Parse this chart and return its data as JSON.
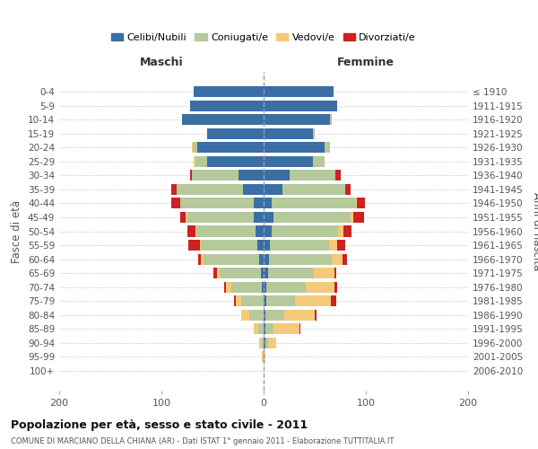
{
  "age_groups": [
    "0-4",
    "5-9",
    "10-14",
    "15-19",
    "20-24",
    "25-29",
    "30-34",
    "35-39",
    "40-44",
    "45-49",
    "50-54",
    "55-59",
    "60-64",
    "65-69",
    "70-74",
    "75-79",
    "80-84",
    "85-89",
    "90-94",
    "95-99",
    "100+"
  ],
  "birth_years": [
    "2006-2010",
    "2001-2005",
    "1996-2000",
    "1991-1995",
    "1986-1990",
    "1981-1985",
    "1976-1980",
    "1971-1975",
    "1966-1970",
    "1961-1965",
    "1956-1960",
    "1951-1955",
    "1946-1950",
    "1941-1945",
    "1936-1940",
    "1931-1935",
    "1926-1930",
    "1921-1925",
    "1916-1920",
    "1911-1915",
    "≤ 1910"
  ],
  "colors": {
    "celibi": "#3a6ea5",
    "coniugati": "#b5c99a",
    "vedovi": "#f5c97a",
    "divorziati": "#cc2222"
  },
  "males": {
    "celibi": [
      68,
      72,
      80,
      55,
      65,
      55,
      25,
      20,
      10,
      10,
      8,
      6,
      4,
      3,
      2,
      0,
      0,
      0,
      0,
      0,
      0
    ],
    "coniugati": [
      0,
      0,
      0,
      0,
      4,
      12,
      45,
      65,
      72,
      65,
      58,
      55,
      55,
      40,
      30,
      22,
      14,
      5,
      2,
      1,
      0
    ],
    "vedovi": [
      0,
      0,
      0,
      0,
      1,
      1,
      0,
      0,
      0,
      1,
      1,
      1,
      2,
      3,
      5,
      5,
      8,
      5,
      2,
      1,
      0
    ],
    "divorziati": [
      0,
      0,
      0,
      0,
      0,
      0,
      2,
      5,
      8,
      6,
      8,
      12,
      3,
      3,
      2,
      2,
      0,
      0,
      0,
      0,
      0
    ]
  },
  "females": {
    "nubili": [
      68,
      72,
      65,
      48,
      60,
      48,
      25,
      18,
      8,
      10,
      8,
      6,
      5,
      4,
      3,
      3,
      2,
      2,
      2,
      0,
      0
    ],
    "coniugate": [
      0,
      0,
      2,
      2,
      5,
      12,
      45,
      62,
      82,
      75,
      65,
      58,
      62,
      45,
      38,
      28,
      18,
      8,
      2,
      0,
      0
    ],
    "vedove": [
      0,
      0,
      0,
      0,
      0,
      0,
      0,
      0,
      1,
      3,
      5,
      8,
      10,
      20,
      28,
      35,
      30,
      25,
      8,
      2,
      0
    ],
    "divorziate": [
      0,
      0,
      0,
      0,
      0,
      0,
      5,
      5,
      8,
      10,
      8,
      8,
      5,
      2,
      3,
      5,
      2,
      1,
      0,
      0,
      0
    ]
  },
  "title": "Popolazione per età, sesso e stato civile - 2011",
  "subtitle": "COMUNE DI MARCIANO DELLA CHIANA (AR) - Dati ISTAT 1° gennaio 2011 - Elaborazione TUTTITALIA.IT",
  "xlabel_left": "Maschi",
  "xlabel_right": "Femmine",
  "ylabel_left": "Fasce di età",
  "ylabel_right": "Anni di nascita",
  "xlim": 200,
  "bg_color": "#ffffff",
  "grid_color": "#cccccc",
  "legend_labels": [
    "Celibi/Nubili",
    "Coniugati/e",
    "Vedovi/e",
    "Divorziati/e"
  ]
}
